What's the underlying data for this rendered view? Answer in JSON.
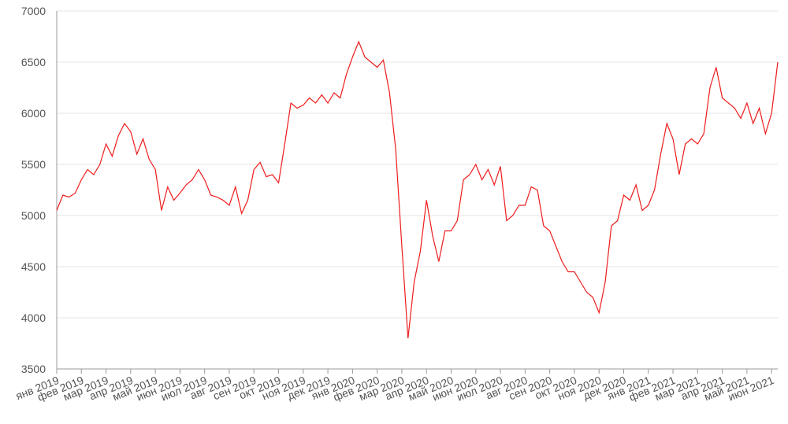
{
  "chart_data": {
    "type": "line",
    "categories": [
      "янв 2019",
      null,
      null,
      null,
      "фев 2019",
      null,
      null,
      null,
      "мар 2019",
      null,
      null,
      null,
      "апр 2019",
      null,
      null,
      null,
      "май 2019",
      null,
      null,
      null,
      "июн 2019",
      null,
      null,
      null,
      "июл 2019",
      null,
      null,
      null,
      "авг 2019",
      null,
      null,
      null,
      "сен 2019",
      null,
      null,
      null,
      "окт 2019",
      null,
      null,
      null,
      "ноя 2019",
      null,
      null,
      null,
      "дек 2019",
      null,
      null,
      null,
      "янв 2020",
      null,
      null,
      null,
      "фев 2020",
      null,
      null,
      null,
      "мар 2020",
      null,
      null,
      null,
      "апр 2020",
      null,
      null,
      null,
      "май 2020",
      null,
      null,
      null,
      "июн 2020",
      null,
      null,
      null,
      "июл 2020",
      null,
      null,
      null,
      "авг 2020",
      null,
      null,
      null,
      "сен 2020",
      null,
      null,
      null,
      "окт 2020",
      null,
      null,
      null,
      "ноя 2020",
      null,
      null,
      null,
      "дек 2020",
      null,
      null,
      null,
      "янв 2021",
      null,
      null,
      null,
      "фев 2021",
      null,
      null,
      null,
      "мар 2021",
      null,
      null,
      null,
      "апр 2021",
      null,
      null,
      null,
      "май 2021",
      null,
      null,
      null,
      "июн 2021",
      null
    ],
    "series": [
      {
        "color": "#ee1c1c",
        "values": [
          5050,
          5200,
          5180,
          5220,
          5350,
          5450,
          5400,
          5500,
          5700,
          5580,
          5780,
          5900,
          5820,
          5600,
          5750,
          5550,
          5450,
          5050,
          5280,
          5150,
          5220,
          5300,
          5350,
          5450,
          5350,
          5200,
          5180,
          5150,
          5100,
          5280,
          5020,
          5150,
          5450,
          5520,
          5380,
          5400,
          5320,
          5700,
          6100,
          6050,
          6080,
          6150,
          6100,
          6180,
          6100,
          6200,
          6150,
          6380,
          6550,
          6700,
          6550,
          6500,
          6450,
          6520,
          6200,
          5650,
          4700,
          3800,
          4350,
          4650,
          5150,
          4800,
          4550,
          4850,
          4850,
          4950,
          5350,
          5400,
          5500,
          5350,
          5450,
          5300,
          5480,
          4950,
          5000,
          5100,
          5100,
          5280,
          5250,
          4900,
          4850,
          4700,
          4550,
          4450,
          4450,
          4350,
          4250,
          4200,
          4050,
          4350,
          4900,
          4950,
          5200,
          5150,
          5300,
          5050,
          5100,
          5250,
          5600,
          5900,
          5750,
          5400,
          5700,
          5750,
          5700,
          5800,
          6250,
          6450,
          6150,
          6100,
          6050,
          5950,
          6100,
          5900,
          6050,
          5800,
          6000,
          6500
        ]
      }
    ],
    "ylim": [
      3500,
      7000
    ],
    "yticks": [
      3500,
      4000,
      4500,
      5000,
      5500,
      6000,
      6500,
      7000
    ],
    "grid": true
  }
}
